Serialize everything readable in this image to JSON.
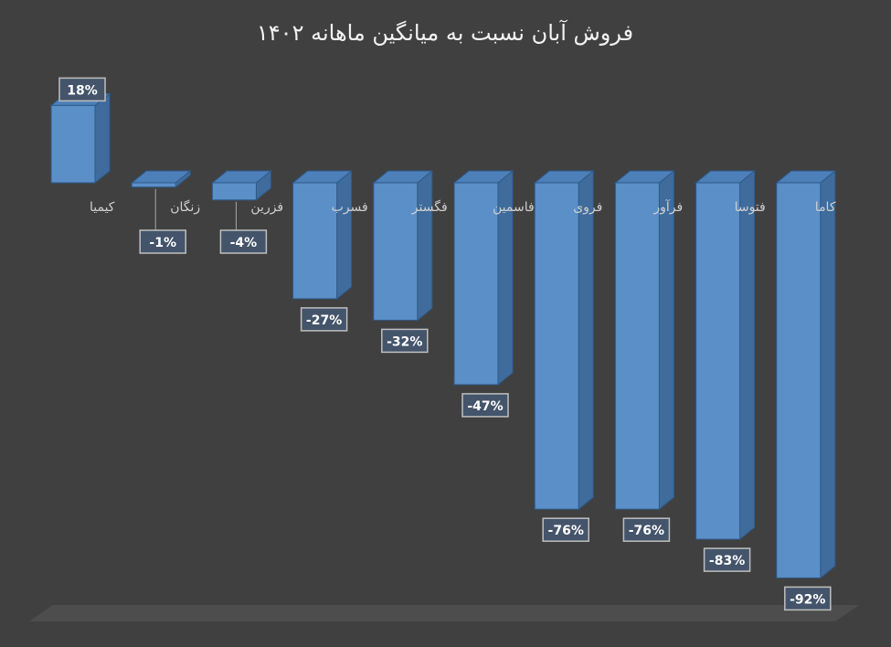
{
  "chart_data": {
    "type": "bar",
    "title": "فروش آبان نسبت به میانگین ماهانه ۱۴۰۲",
    "xlabel": "",
    "ylabel": "",
    "categories": [
      "کیمیا",
      "زنگان",
      "فزرین",
      "فسرب",
      "فگستر",
      "فاسمین",
      "فروی",
      "فرآور",
      "فتوسا",
      "کاما"
    ],
    "values": [
      18,
      -1,
      -4,
      -27,
      -32,
      -47,
      -76,
      -76,
      -83,
      -92
    ],
    "data_labels": [
      "18%",
      "-1%",
      "-4%",
      "-27%",
      "-32%",
      "-47%",
      "-76%",
      "-76%",
      "-83%",
      "-92%"
    ],
    "value_unit": "%",
    "ylim": [
      -92,
      18
    ],
    "grid": false,
    "legend": "none",
    "style": "3d-column",
    "colors": {
      "background": "#404040",
      "bar_front": "#5b8fc7",
      "bar_side": "#3f6c9d",
      "bar_top": "#4d7fb8",
      "bar_edge": "#2e5a8a",
      "floor": "#4d4d4d",
      "label_box": "#44546a",
      "label_border": "#bfbfbf"
    }
  }
}
